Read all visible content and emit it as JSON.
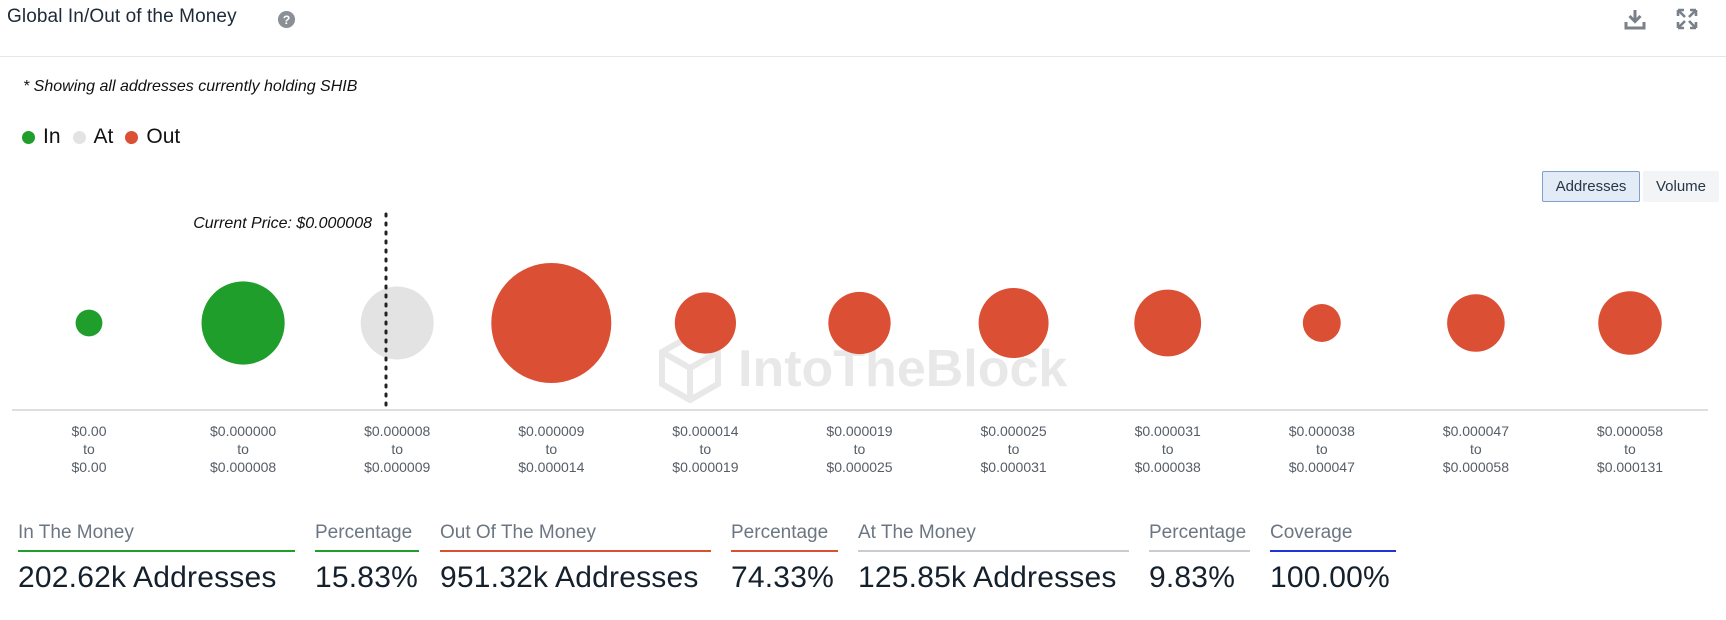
{
  "header": {
    "title": "Global In/Out of the Money",
    "help_icon": "question-circle-icon",
    "download_icon": "download-icon",
    "fullscreen_icon": "expand-icon"
  },
  "note": "* Showing all addresses currently holding SHIB",
  "legend": [
    {
      "label": "In",
      "color": "#1f9e2c"
    },
    {
      "label": "At",
      "color": "#e3e3e3"
    },
    {
      "label": "Out",
      "color": "#db4f34"
    }
  ],
  "toggle": {
    "addresses": "Addresses",
    "volume": "Volume",
    "active": "Addresses"
  },
  "watermark": "IntoTheBlock",
  "chart_data": {
    "type": "bubble",
    "current_price_label": "Current Price: $0.000008",
    "current_price_position": "between bucket 3 (At) bubble center",
    "legend_placement": "top-left",
    "buckets": [
      {
        "range": [
          "$0.00",
          "to",
          "$0.00"
        ],
        "status": "In",
        "relative_size": 0.05
      },
      {
        "range": [
          "$0.000000",
          "to",
          "$0.000008"
        ],
        "status": "In",
        "relative_size": 0.48
      },
      {
        "range": [
          "$0.000008",
          "to",
          "$0.000009"
        ],
        "status": "At",
        "relative_size": 0.37
      },
      {
        "range": [
          "$0.000009",
          "to",
          "$0.000014"
        ],
        "status": "Out",
        "relative_size": 1.0
      },
      {
        "range": [
          "$0.000014",
          "to",
          "$0.000019"
        ],
        "status": "Out",
        "relative_size": 0.26
      },
      {
        "range": [
          "$0.000019",
          "to",
          "$0.000025"
        ],
        "status": "Out",
        "relative_size": 0.27
      },
      {
        "range": [
          "$0.000025",
          "to",
          "$0.000031"
        ],
        "status": "Out",
        "relative_size": 0.34
      },
      {
        "range": [
          "$0.000031",
          "to",
          "$0.000038"
        ],
        "status": "Out",
        "relative_size": 0.31
      },
      {
        "range": [
          "$0.000038",
          "to",
          "$0.000047"
        ],
        "status": "Out",
        "relative_size": 0.1
      },
      {
        "range": [
          "$0.000047",
          "to",
          "$0.000058"
        ],
        "status": "Out",
        "relative_size": 0.23
      },
      {
        "range": [
          "$0.000058",
          "to",
          "$0.000131"
        ],
        "status": "Out",
        "relative_size": 0.28
      }
    ]
  },
  "stats": [
    {
      "label": "In The Money",
      "value": "202.62k Addresses",
      "color": "#1f9e2c"
    },
    {
      "label": "Percentage",
      "value": "15.83%",
      "color": "#1f9e2c"
    },
    {
      "label": "Out Of The Money",
      "value": "951.32k Addresses",
      "color": "#db4f34"
    },
    {
      "label": "Percentage",
      "value": "74.33%",
      "color": "#db4f34"
    },
    {
      "label": "At The Money",
      "value": "125.85k Addresses",
      "color": "#c9ccd0"
    },
    {
      "label": "Percentage",
      "value": "9.83%",
      "color": "#c9ccd0"
    },
    {
      "label": "Coverage",
      "value": "100.00%",
      "color": "#2233d6"
    }
  ]
}
